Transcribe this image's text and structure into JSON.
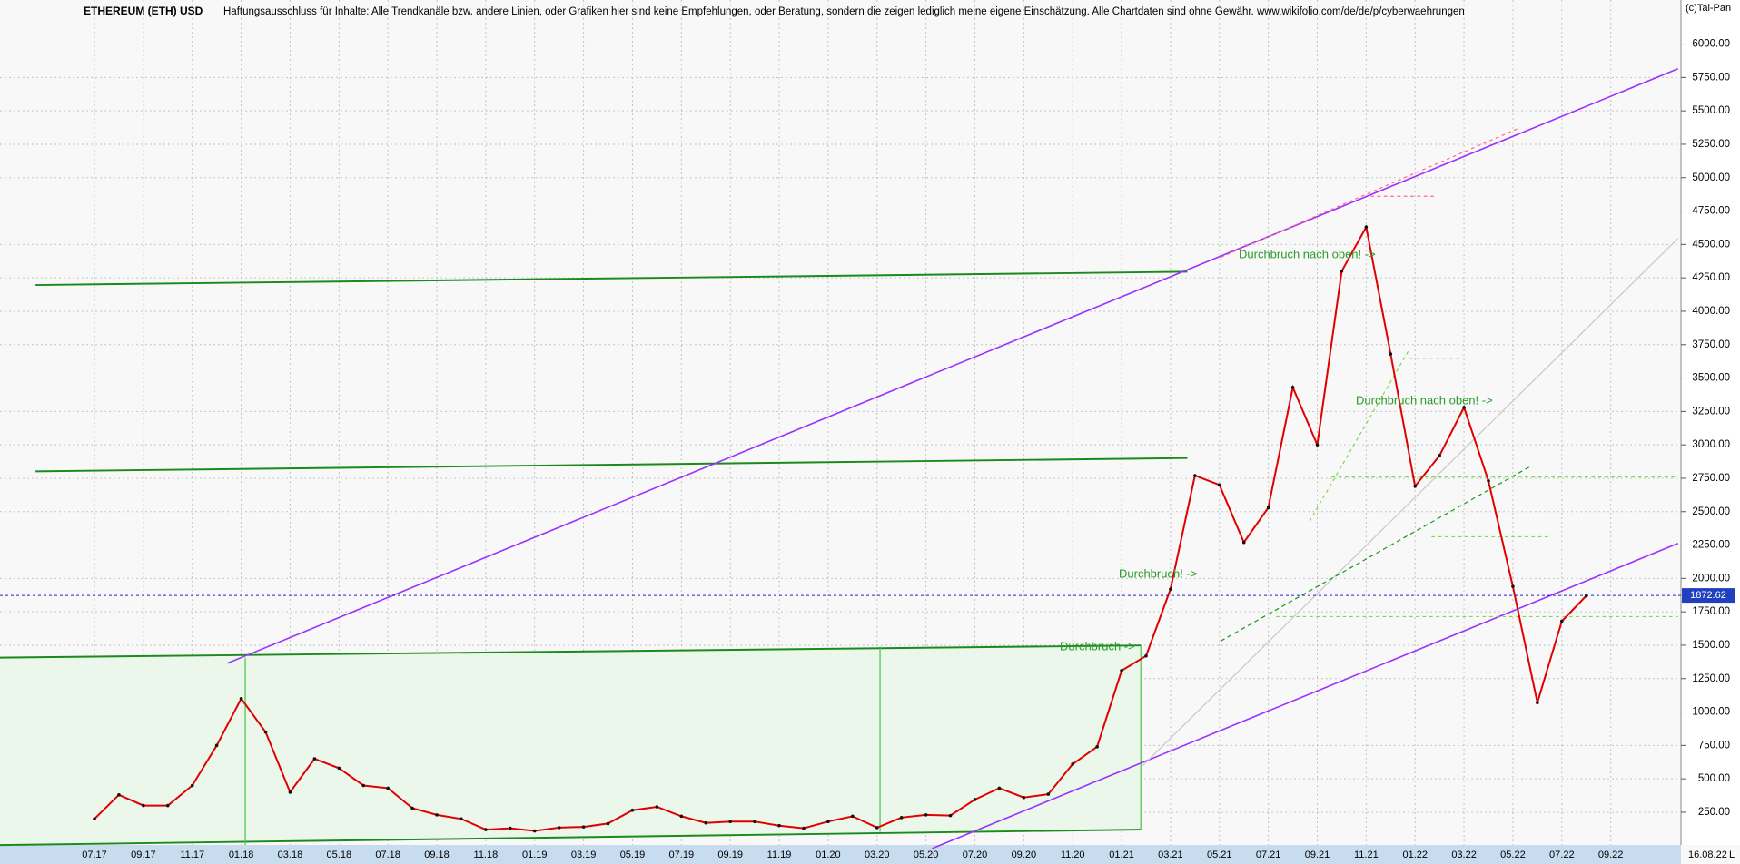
{
  "chart_data": {
    "type": "line",
    "title": "ETHEREUM (ETH) USD",
    "subtitle": "Haftungsausschluss für Inhalte: Alle Trendkanäle bzw. andere Linien, oder Grafiken hier sind keine Empfehlungen, oder Beratung, sondern die zeigen lediglich meine eigene Einschätzung. Alle Chartdaten sind ohne Gewähr.  www.wikifolio.com/de/de/p/cyberwaehrungen",
    "copyright": "(c)Tai-Pan",
    "date": "16.08.22",
    "corner_label": "L",
    "color": "#e00000",
    "categories": [
      "07.17",
      null,
      "09.17",
      null,
      "11.17",
      null,
      "01.18",
      null,
      "03.18",
      null,
      "05.18",
      null,
      "07.18",
      null,
      "09.18",
      null,
      "11.18",
      null,
      "01.19",
      null,
      "03.19",
      null,
      "05.19",
      null,
      "07.19",
      null,
      "09.19",
      null,
      "11.19",
      null,
      "01.20",
      null,
      "03.20",
      null,
      "05.20",
      null,
      "07.20",
      null,
      "09.20",
      null,
      "11.20",
      null,
      "01.21",
      null,
      "03.21",
      null,
      "05.21",
      null,
      "07.21",
      null,
      "09.21",
      null,
      "11.21",
      null,
      "01.22",
      null,
      "03.22",
      null,
      "05.22",
      null,
      "07.22",
      null,
      "09.22"
    ],
    "values": [
      200,
      380,
      300,
      300,
      450,
      750,
      1100,
      850,
      400,
      650,
      580,
      450,
      430,
      280,
      230,
      200,
      120,
      130,
      110,
      135,
      140,
      165,
      265,
      290,
      220,
      170,
      180,
      180,
      150,
      130,
      180,
      220,
      135,
      210,
      230,
      225,
      345,
      430,
      360,
      385,
      610,
      740,
      1310,
      1420,
      1920,
      2770,
      2700,
      2270,
      2530,
      3430,
      3000,
      4300,
      4630,
      3680,
      2690,
      2920,
      3280,
      2730,
      1940,
      1070,
      1680,
      1870,
      null
    ],
    "ylim": [
      5,
      6330
    ],
    "yticks": [
      {
        "value": 250,
        "label": "250.00"
      },
      {
        "value": 500,
        "label": "500.00"
      },
      {
        "value": 750,
        "label": "750.00"
      },
      {
        "value": 1000,
        "label": "1000.00"
      },
      {
        "value": 1250,
        "label": "1250.00"
      },
      {
        "value": 1500,
        "label": "1500.00"
      },
      {
        "value": 1750,
        "label": "1750.00"
      },
      {
        "value": 2000,
        "label": "2000.00"
      },
      {
        "value": 2250,
        "label": "2250.00"
      },
      {
        "value": 2500,
        "label": "2500.00"
      },
      {
        "value": 2750,
        "label": "2750.00"
      },
      {
        "value": 3000,
        "label": "3000.00"
      },
      {
        "value": 3250,
        "label": "3250.00"
      },
      {
        "value": 3500,
        "label": "3500.00"
      },
      {
        "value": 3750,
        "label": "3750.00"
      },
      {
        "value": 4000,
        "label": "4000.00"
      },
      {
        "value": 4250,
        "label": "4250.00"
      },
      {
        "value": 4500,
        "label": "4500.00"
      },
      {
        "value": 4750,
        "label": "4750.00"
      },
      {
        "value": 5000,
        "label": "5000.00"
      },
      {
        "value": 5250,
        "label": "5250.00"
      },
      {
        "value": 5500,
        "label": "5500.00"
      },
      {
        "value": 5750,
        "label": "5750.00"
      },
      {
        "value": 6000,
        "label": "6000.00"
      }
    ],
    "last_price": 1872.62,
    "grid": true,
    "annotations": [
      "Durchbruch nach oben! ->",
      "Durchbruch nach oben! ->",
      "Durchbruch! ->",
      "Durchbruch ->"
    ]
  }
}
